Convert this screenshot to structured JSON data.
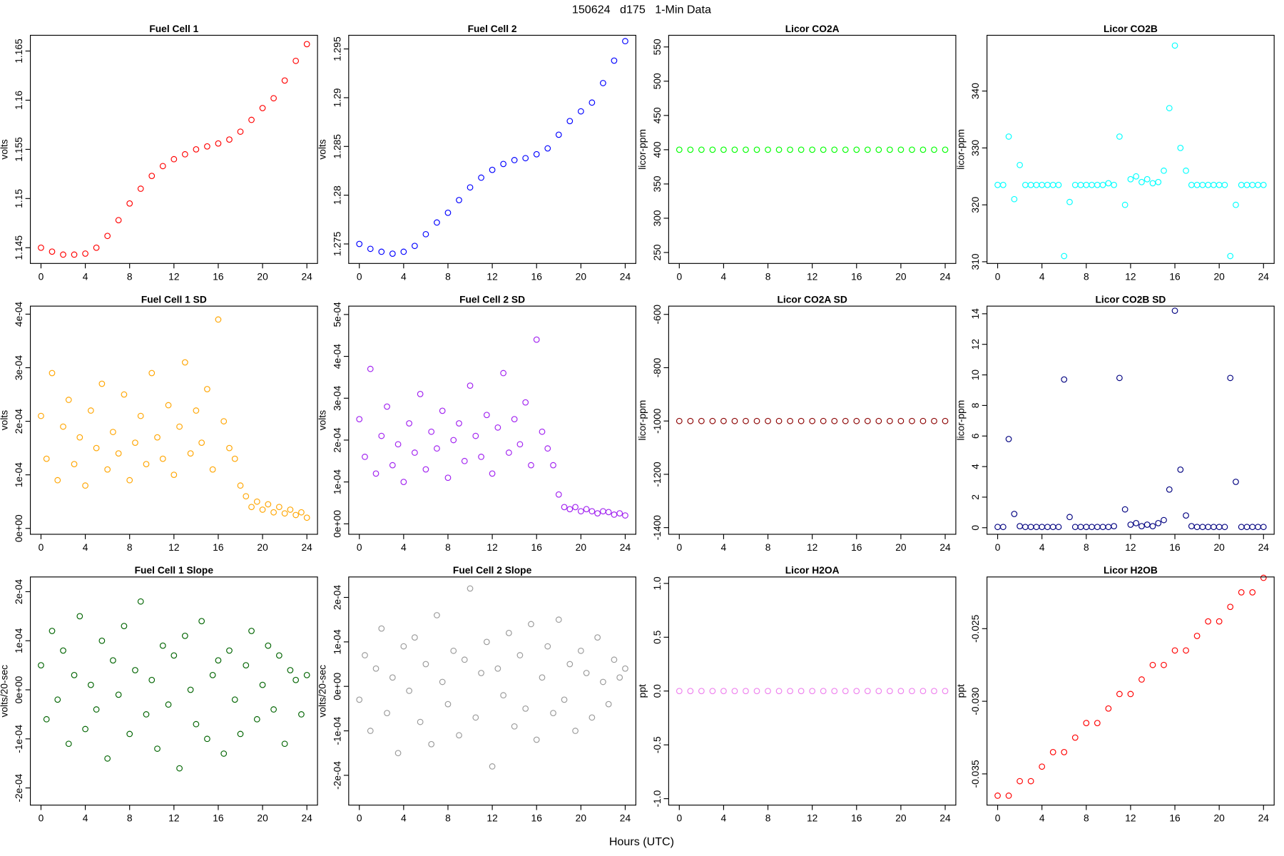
{
  "title": "150624   d175   1-Min Data",
  "x_label": "Hours (UTC)",
  "chart_data": [
    {
      "type": "scatter",
      "title": "Fuel Cell 1",
      "y_label": "volts",
      "color": "#ff0000",
      "x": [
        0,
        1,
        2,
        3,
        4,
        5,
        6,
        7,
        8,
        9,
        10,
        11,
        12,
        13,
        14,
        15,
        16,
        17,
        18,
        19,
        20,
        21,
        22,
        23,
        24
      ],
      "values": [
        1.145,
        1.1446,
        1.1443,
        1.1443,
        1.1444,
        1.145,
        1.1462,
        1.1478,
        1.1495,
        1.151,
        1.1523,
        1.1533,
        1.154,
        1.1545,
        1.155,
        1.1553,
        1.1556,
        1.156,
        1.1568,
        1.158,
        1.1592,
        1.1602,
        1.162,
        1.164,
        1.1657
      ],
      "xlim": [
        -0.96,
        24.96
      ],
      "xticks": [
        0,
        4,
        8,
        12,
        16,
        20,
        24
      ],
      "ylim": [
        1.1434,
        1.1666
      ],
      "yticks": [
        1.145,
        1.15,
        1.155,
        1.16,
        1.165
      ]
    },
    {
      "type": "scatter",
      "title": "Fuel Cell 2",
      "y_label": "volts",
      "color": "#0000ff",
      "x": [
        0,
        1,
        2,
        3,
        4,
        5,
        6,
        7,
        8,
        9,
        10,
        11,
        12,
        13,
        14,
        15,
        16,
        17,
        18,
        19,
        20,
        21,
        22,
        23,
        24
      ],
      "values": [
        1.275,
        1.2745,
        1.2742,
        1.274,
        1.2742,
        1.2748,
        1.276,
        1.2772,
        1.2782,
        1.2795,
        1.2808,
        1.2818,
        1.2826,
        1.2832,
        1.2836,
        1.2838,
        1.2842,
        1.2848,
        1.2862,
        1.2876,
        1.2886,
        1.2895,
        1.2915,
        1.2938,
        1.2958
      ],
      "xlim": [
        -0.96,
        24.96
      ],
      "xticks": [
        0,
        4,
        8,
        12,
        16,
        20,
        24
      ],
      "ylim": [
        1.273,
        1.2964
      ],
      "yticks": [
        1.275,
        1.28,
        1.285,
        1.29,
        1.295
      ]
    },
    {
      "type": "scatter",
      "title": "Licor CO2A",
      "y_label": "licor-ppm",
      "color": "#00ff00",
      "x": [
        0,
        1,
        2,
        3,
        4,
        5,
        6,
        7,
        8,
        9,
        10,
        11,
        12,
        13,
        14,
        15,
        16,
        17,
        18,
        19,
        20,
        21,
        22,
        23,
        24
      ],
      "values": [
        400,
        400,
        400,
        400,
        400,
        400,
        400,
        400,
        400,
        400,
        400,
        400,
        400,
        400,
        400,
        400,
        400,
        400,
        400,
        400,
        400,
        400,
        400,
        400,
        400
      ],
      "xlim": [
        -0.96,
        24.96
      ],
      "xticks": [
        0,
        4,
        8,
        12,
        16,
        20,
        24
      ],
      "ylim": [
        234,
        567
      ],
      "yticks": [
        250,
        300,
        350,
        400,
        450,
        500,
        550
      ]
    },
    {
      "type": "scatter",
      "title": "Licor CO2B",
      "y_label": "licor-ppm",
      "color": "#00ffff",
      "x": [
        0,
        0.5,
        1,
        1.5,
        2,
        2.5,
        3,
        3.5,
        4,
        4.5,
        5,
        5.5,
        6,
        6.5,
        7,
        7.5,
        8,
        8.5,
        9,
        9.5,
        10,
        10.5,
        11,
        11.5,
        12,
        12.5,
        13,
        13.5,
        14,
        14.5,
        15,
        15.5,
        16,
        16.5,
        17,
        17.5,
        18,
        18.5,
        19,
        19.5,
        20,
        20.5,
        21,
        21.5,
        22,
        22.5,
        23,
        23.5,
        24
      ],
      "values": [
        323.5,
        323.5,
        332,
        321,
        327,
        323.5,
        323.5,
        323.5,
        323.5,
        323.5,
        323.5,
        323.5,
        311,
        320.5,
        323.5,
        323.5,
        323.5,
        323.5,
        323.5,
        323.5,
        323.8,
        323.5,
        332,
        320,
        324.5,
        325,
        324,
        324.5,
        323.8,
        324,
        326,
        337,
        348,
        330,
        326,
        323.5,
        323.5,
        323.5,
        323.5,
        323.5,
        323.5,
        323.5,
        311,
        320,
        323.5,
        323.5,
        323.5,
        323.5,
        323.5
      ],
      "xlim": [
        -0.96,
        24.96
      ],
      "xticks": [
        0,
        4,
        8,
        12,
        16,
        20,
        24
      ],
      "ylim": [
        309.7,
        349.8
      ],
      "yticks": [
        310,
        320,
        330,
        340
      ]
    },
    {
      "type": "scatter",
      "title": "Fuel Cell 1 SD",
      "y_label": "volts",
      "color": "#ffa500",
      "x": [
        0,
        0.5,
        1,
        1.5,
        2,
        2.5,
        3,
        3.5,
        4,
        4.5,
        5,
        5.5,
        6,
        6.5,
        7,
        7.5,
        8,
        8.5,
        9,
        9.5,
        10,
        10.5,
        11,
        11.5,
        12,
        12.5,
        13,
        13.5,
        14,
        14.5,
        15,
        15.5,
        16,
        16.5,
        17,
        17.5,
        18,
        18.5,
        19,
        19.5,
        20,
        20.5,
        21,
        21.5,
        22,
        22.5,
        23,
        23.5,
        24
      ],
      "values": [
        0.00021,
        0.00013,
        0.00029,
        9e-05,
        0.00019,
        0.00024,
        0.00012,
        0.00017,
        8e-05,
        0.00022,
        0.00015,
        0.00027,
        0.00011,
        0.00018,
        0.00014,
        0.00025,
        9e-05,
        0.00016,
        0.00021,
        0.00012,
        0.00029,
        0.00017,
        0.00013,
        0.00023,
        0.0001,
        0.00019,
        0.00031,
        0.00014,
        0.00022,
        0.00016,
        0.00026,
        0.00011,
        0.00039,
        0.0002,
        0.00015,
        0.00013,
        8e-05,
        6e-05,
        4e-05,
        5e-05,
        3.5e-05,
        4.5e-05,
        3e-05,
        4e-05,
        2.8e-05,
        3.5e-05,
        2.5e-05,
        3e-05,
        2e-05
      ],
      "xlim": [
        -0.96,
        24.96
      ],
      "xticks": [
        0,
        4,
        8,
        12,
        16,
        20,
        24
      ],
      "ylim": [
        -1.1e-05,
        0.000415
      ],
      "yticks": [
        {
          "value": 0,
          "label": "0e+00"
        },
        {
          "value": 0.0001,
          "label": "1e-04"
        },
        {
          "value": 0.0002,
          "label": "2e-04"
        },
        {
          "value": 0.0003,
          "label": "3e-04"
        },
        {
          "value": 0.0004,
          "label": "4e-04"
        }
      ]
    },
    {
      "type": "scatter",
      "title": "Fuel Cell 2 SD",
      "y_label": "volts",
      "color": "#a020f0",
      "x": [
        0,
        0.5,
        1,
        1.5,
        2,
        2.5,
        3,
        3.5,
        4,
        4.5,
        5,
        5.5,
        6,
        6.5,
        7,
        7.5,
        8,
        8.5,
        9,
        9.5,
        10,
        10.5,
        11,
        11.5,
        12,
        12.5,
        13,
        13.5,
        14,
        14.5,
        15,
        15.5,
        16,
        16.5,
        17,
        17.5,
        18,
        18.5,
        19,
        19.5,
        20,
        20.5,
        21,
        21.5,
        22,
        22.5,
        23,
        23.5,
        24
      ],
      "values": [
        0.00025,
        0.00016,
        0.00037,
        0.00012,
        0.00021,
        0.00028,
        0.00014,
        0.00019,
        0.0001,
        0.00024,
        0.00017,
        0.00031,
        0.00013,
        0.00022,
        0.00018,
        0.00027,
        0.00011,
        0.0002,
        0.00024,
        0.00015,
        0.00033,
        0.00021,
        0.00016,
        0.00026,
        0.00012,
        0.00023,
        0.00036,
        0.00017,
        0.00025,
        0.00019,
        0.00029,
        0.00014,
        0.00044,
        0.00022,
        0.00018,
        0.00014,
        7e-05,
        4e-05,
        3.5e-05,
        4e-05,
        3e-05,
        3.5e-05,
        3e-05,
        2.5e-05,
        3e-05,
        2.8e-05,
        2.2e-05,
        2.5e-05,
        2e-05
      ],
      "xlim": [
        -0.96,
        24.96
      ],
      "xticks": [
        0,
        4,
        8,
        12,
        16,
        20,
        24
      ],
      "ylim": [
        -2.5e-05,
        0.00052
      ],
      "yticks": [
        {
          "value": 0,
          "label": "0e+00"
        },
        {
          "value": 0.0001,
          "label": "1e-04"
        },
        {
          "value": 0.0002,
          "label": "2e-04"
        },
        {
          "value": 0.0003,
          "label": "3e-04"
        },
        {
          "value": 0.0004,
          "label": "4e-04"
        },
        {
          "value": 0.0005,
          "label": "5e-04"
        }
      ]
    },
    {
      "type": "scatter",
      "title": "Licor CO2A SD",
      "y_label": "licor-ppm",
      "color": "#8b0000",
      "x": [
        0,
        1,
        2,
        3,
        4,
        5,
        6,
        7,
        8,
        9,
        10,
        11,
        12,
        13,
        14,
        15,
        16,
        17,
        18,
        19,
        20,
        21,
        22,
        23,
        24
      ],
      "values": [
        -1000,
        -1000,
        -1000,
        -1000,
        -1000,
        -1000,
        -1000,
        -1000,
        -1000,
        -1000,
        -1000,
        -1000,
        -1000,
        -1000,
        -1000,
        -1000,
        -1000,
        -1000,
        -1000,
        -1000,
        -1000,
        -1000,
        -1000,
        -1000,
        -1000
      ],
      "xlim": [
        -0.96,
        24.96
      ],
      "xticks": [
        0,
        4,
        8,
        12,
        16,
        20,
        24
      ],
      "ylim": [
        -1425,
        -569
      ],
      "yticks": [
        -1400,
        -1200,
        -1000,
        -800,
        -600
      ]
    },
    {
      "type": "scatter",
      "title": "Licor CO2B SD",
      "y_label": "licor-ppm",
      "color": "#000080",
      "x": [
        0,
        0.5,
        1,
        1.5,
        2,
        2.5,
        3,
        3.5,
        4,
        4.5,
        5,
        5.5,
        6,
        6.5,
        7,
        7.5,
        8,
        8.5,
        9,
        9.5,
        10,
        10.5,
        11,
        11.5,
        12,
        12.5,
        13,
        13.5,
        14,
        14.5,
        15,
        15.5,
        16,
        16.5,
        17,
        17.5,
        18,
        18.5,
        19,
        19.5,
        20,
        20.5,
        21,
        21.5,
        22,
        22.5,
        23,
        23.5,
        24
      ],
      "values": [
        0.05,
        0.05,
        5.8,
        0.9,
        0.1,
        0.05,
        0.05,
        0.05,
        0.05,
        0.05,
        0.05,
        0.05,
        9.7,
        0.7,
        0.05,
        0.05,
        0.05,
        0.05,
        0.05,
        0.05,
        0.05,
        0.1,
        9.8,
        1.2,
        0.2,
        0.3,
        0.1,
        0.2,
        0.1,
        0.3,
        0.5,
        2.5,
        14.2,
        3.8,
        0.8,
        0.1,
        0.05,
        0.05,
        0.05,
        0.05,
        0.05,
        0.05,
        9.8,
        3,
        0.05,
        0.05,
        0.05,
        0.05,
        0.05
      ],
      "xlim": [
        -0.96,
        24.96
      ],
      "xticks": [
        0,
        4,
        8,
        12,
        16,
        20,
        24
      ],
      "ylim": [
        -0.43,
        14.5
      ],
      "yticks": [
        0,
        2,
        4,
        6,
        8,
        10,
        12,
        14
      ]
    },
    {
      "type": "scatter",
      "title": "Fuel Cell 1 Slope",
      "y_label": "volts/20-sec",
      "color": "#006400",
      "x": [
        0,
        0.5,
        1,
        1.5,
        2,
        2.5,
        3,
        3.5,
        4,
        4.5,
        5,
        5.5,
        6,
        6.5,
        7,
        7.5,
        8,
        8.5,
        9,
        9.5,
        10,
        10.5,
        11,
        11.5,
        12,
        12.5,
        13,
        13.5,
        14,
        14.5,
        15,
        15.5,
        16,
        16.5,
        17,
        17.5,
        18,
        18.5,
        19,
        19.5,
        20,
        20.5,
        21,
        21.5,
        22,
        22.5,
        23,
        23.5,
        24
      ],
      "values": [
        5e-05,
        -6e-05,
        0.00012,
        -2e-05,
        8e-05,
        -0.00011,
        3e-05,
        0.00015,
        -8e-05,
        1e-05,
        -4e-05,
        0.0001,
        -0.00014,
        6e-05,
        -1e-05,
        0.00013,
        -9e-05,
        4e-05,
        0.00018,
        -5e-05,
        2e-05,
        -0.00012,
        9e-05,
        -3e-05,
        7e-05,
        -0.00016,
        0.00011,
        0,
        -7e-05,
        0.00014,
        -0.0001,
        3e-05,
        6e-05,
        -0.00013,
        8e-05,
        -2e-05,
        -9e-05,
        5e-05,
        0.00012,
        -6e-05,
        1e-05,
        9e-05,
        -4e-05,
        7e-05,
        -0.00011,
        4e-05,
        2e-05,
        -5e-05,
        3e-05
      ],
      "xlim": [
        -0.96,
        24.96
      ],
      "xticks": [
        0,
        4,
        8,
        12,
        16,
        20,
        24
      ],
      "ylim": [
        -0.000235,
        0.00023
      ],
      "yticks": [
        {
          "value": -0.0002,
          "label": "-2e-04"
        },
        {
          "value": -0.0001,
          "label": "-1e-04"
        },
        {
          "value": 0,
          "label": "0e+00"
        },
        {
          "value": 0.0001,
          "label": "1e-04"
        },
        {
          "value": 0.0002,
          "label": "2e-04"
        }
      ]
    },
    {
      "type": "scatter",
      "title": "Fuel Cell 2 Slope",
      "y_label": "volts/20-sec",
      "color": "#9a9a9a",
      "x": [
        0,
        0.5,
        1,
        1.5,
        2,
        2.5,
        3,
        3.5,
        4,
        4.5,
        5,
        5.5,
        6,
        6.5,
        7,
        7.5,
        8,
        8.5,
        9,
        9.5,
        10,
        10.5,
        11,
        11.5,
        12,
        12.5,
        13,
        13.5,
        14,
        14.5,
        15,
        15.5,
        16,
        16.5,
        17,
        17.5,
        18,
        18.5,
        19,
        19.5,
        20,
        20.5,
        21,
        21.5,
        22,
        22.5,
        23,
        23.5,
        24
      ],
      "values": [
        -3e-05,
        7e-05,
        -0.0001,
        4e-05,
        0.00013,
        -6e-05,
        2e-05,
        -0.00015,
        9e-05,
        -1e-05,
        0.00011,
        -8e-05,
        5e-05,
        -0.00013,
        0.00016,
        1e-05,
        -4e-05,
        8e-05,
        -0.00011,
        6e-05,
        0.00022,
        -7e-05,
        3e-05,
        0.0001,
        -0.00018,
        4e-05,
        -2e-05,
        0.00012,
        -9e-05,
        7e-05,
        -5e-05,
        0.00014,
        -0.00012,
        2e-05,
        9e-05,
        -6e-05,
        0.00015,
        -3e-05,
        5e-05,
        -0.0001,
        8e-05,
        3e-05,
        -7e-05,
        0.00011,
        1e-05,
        -4e-05,
        6e-05,
        2e-05,
        4e-05
      ],
      "xlim": [
        -0.96,
        24.96
      ],
      "xticks": [
        0,
        4,
        8,
        12,
        16,
        20,
        24
      ],
      "ylim": [
        -0.000267,
        0.000246
      ],
      "yticks": [
        {
          "value": -0.0002,
          "label": "-2e-04"
        },
        {
          "value": -0.0001,
          "label": "-1e-04"
        },
        {
          "value": 0,
          "label": "0e+00"
        },
        {
          "value": 0.0001,
          "label": "1e-04"
        },
        {
          "value": 0.0002,
          "label": "2e-04"
        }
      ]
    },
    {
      "type": "scatter",
      "title": "Licor H2OA",
      "y_label": "ppt",
      "color": "#ee82ee",
      "x": [
        0,
        1,
        2,
        3,
        4,
        5,
        6,
        7,
        8,
        9,
        10,
        11,
        12,
        13,
        14,
        15,
        16,
        17,
        18,
        19,
        20,
        21,
        22,
        23,
        24
      ],
      "values": [
        0,
        0,
        0,
        0,
        0,
        0,
        0,
        0,
        0,
        0,
        0,
        0,
        0,
        0,
        0,
        0,
        0,
        0,
        0,
        0,
        0,
        0,
        0,
        0,
        0
      ],
      "xlim": [
        -0.96,
        24.96
      ],
      "xticks": [
        0,
        4,
        8,
        12,
        16,
        20,
        24
      ],
      "ylim": [
        -1.06,
        1.06
      ],
      "yticks": [
        {
          "value": -1,
          "label": "-1.0"
        },
        -0.5,
        {
          "value": 0,
          "label": "0.0"
        },
        0.5,
        {
          "value": 1,
          "label": "1.0"
        }
      ]
    },
    {
      "type": "scatter",
      "title": "Licor H2OB",
      "y_label": "ppt",
      "color": "#ff0000",
      "x": [
        0,
        1,
        2,
        3,
        4,
        5,
        6,
        7,
        8,
        9,
        10,
        11,
        12,
        13,
        14,
        15,
        16,
        17,
        18,
        19,
        20,
        21,
        22,
        23,
        24
      ],
      "values": [
        -0.0365,
        -0.0365,
        -0.0355,
        -0.0355,
        -0.0345,
        -0.0335,
        -0.0335,
        -0.0325,
        -0.0315,
        -0.0315,
        -0.0305,
        -0.0295,
        -0.0295,
        -0.0285,
        -0.0275,
        -0.0275,
        -0.0265,
        -0.0265,
        -0.0255,
        -0.0245,
        -0.0245,
        -0.0235,
        -0.0225,
        -0.0225,
        -0.0215
      ],
      "xlim": [
        -0.96,
        24.96
      ],
      "xticks": [
        0,
        4,
        8,
        12,
        16,
        20,
        24
      ],
      "ylim": [
        -0.03715,
        -0.02144
      ],
      "yticks": [
        -0.035,
        {
          "value": -0.03,
          "label": "-0.030"
        },
        -0.025
      ]
    }
  ]
}
